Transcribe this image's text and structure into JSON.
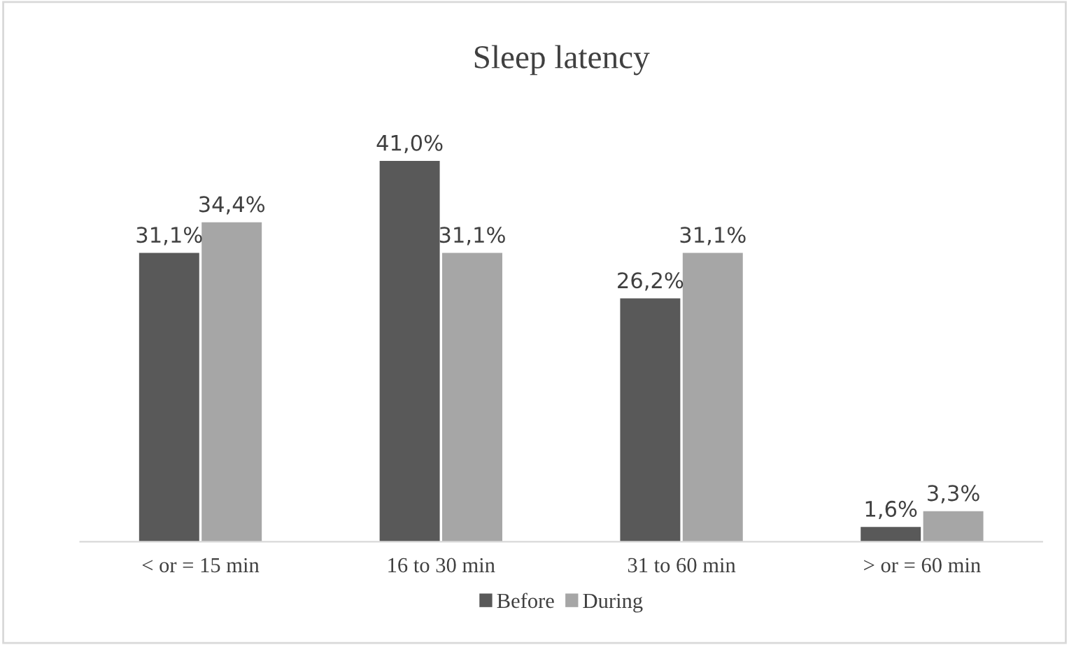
{
  "chart_data": {
    "type": "bar",
    "title": "Sleep latency",
    "categories": [
      "< or = 15 min",
      "16 to 30 min",
      "31 to 60 min",
      "> or = 60 min"
    ],
    "series": [
      {
        "name": "Before",
        "color": "#595959",
        "values": [
          31.1,
          41.0,
          26.2,
          1.6
        ],
        "value_labels": [
          "31,1%",
          "41,0%",
          "26,2%",
          "1,6%"
        ]
      },
      {
        "name": "During",
        "color": "#a6a6a6",
        "values": [
          34.4,
          31.1,
          31.1,
          3.3
        ],
        "value_labels": [
          "34,4%",
          "31,1%",
          "31,1%",
          "3,3%"
        ]
      }
    ],
    "legend": "bottom",
    "grid": false
  }
}
